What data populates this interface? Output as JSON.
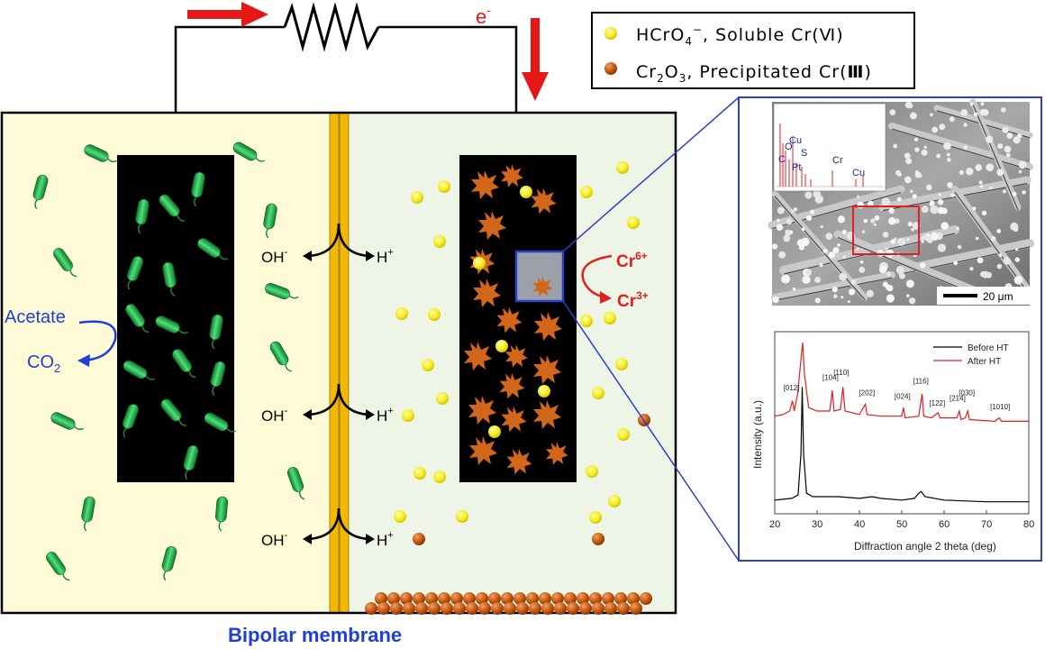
{
  "circuit": {
    "electron_label": "e",
    "electron_sup": "-"
  },
  "legend": {
    "item1_formula": "HCrO",
    "item1_sub": "4",
    "item1_sup": "−",
    "item1_text": ", Soluble Cr(Ⅵ)",
    "item2_formula": "Cr",
    "item2_sub1": "2",
    "item2_mid": "O",
    "item2_sub2": "3",
    "item2_text": ", Precipitated Cr(",
    "item2_bold": "Ⅲ",
    "item2_close": ")",
    "color_soluble": "#f5ec1a",
    "color_precipitated": "#c4560f"
  },
  "anode": {
    "acetate": "Acetate",
    "co2": "CO",
    "co2_sub": "2",
    "bacteria_color": "#2fbf5a",
    "chamber_color": "#fefbd6"
  },
  "membrane": {
    "label": "Bipolar membrane",
    "color": "#f4b800",
    "ions": [
      {
        "oh": "OH",
        "oh_sup": "-",
        "h": "H",
        "h_sup": "+"
      },
      {
        "oh": "OH",
        "oh_sup": "-",
        "h": "H",
        "h_sup": "+"
      },
      {
        "oh": "OH",
        "oh_sup": "-",
        "h": "H",
        "h_sup": "+"
      }
    ]
  },
  "cathode": {
    "cr6": "Cr",
    "cr6_sup": "6+",
    "cr3": "Cr",
    "cr3_sup": "3+",
    "chamber_color": "#eef4e6"
  },
  "sem": {
    "eds_labels": [
      "O",
      "Cu",
      "C",
      "S",
      "Pt",
      "Cr",
      "Cu"
    ],
    "scale_bar": "20 μm"
  },
  "chart_data": {
    "type": "line",
    "xlabel": "Diffraction angle 2 theta (deg)",
    "ylabel": "Intensity (a.u.)",
    "xlim": [
      20,
      80
    ],
    "x_ticks": [
      "20",
      "30",
      "40",
      "50",
      "60",
      "70",
      "80"
    ],
    "series": [
      {
        "name": "Before HT",
        "color": "#000000",
        "points": [
          [
            20,
            0.08
          ],
          [
            22,
            0.085
          ],
          [
            24,
            0.09
          ],
          [
            25.5,
            0.11
          ],
          [
            26.2,
            0.35
          ],
          [
            26.5,
            0.74
          ],
          [
            26.8,
            0.35
          ],
          [
            27.5,
            0.12
          ],
          [
            29,
            0.1
          ],
          [
            35,
            0.1
          ],
          [
            40,
            0.09
          ],
          [
            43,
            0.1
          ],
          [
            45,
            0.09
          ],
          [
            50,
            0.08
          ],
          [
            53,
            0.09
          ],
          [
            54,
            0.12
          ],
          [
            54.6,
            0.13
          ],
          [
            55.5,
            0.1
          ],
          [
            60,
            0.08
          ],
          [
            70,
            0.07
          ],
          [
            80,
            0.07
          ]
        ]
      },
      {
        "name": "After HT",
        "color": "#e02020",
        "points": [
          [
            20,
            0.57
          ],
          [
            22,
            0.58
          ],
          [
            23.5,
            0.6
          ],
          [
            24.2,
            0.66
          ],
          [
            24.6,
            0.6
          ],
          [
            25.4,
            0.7
          ],
          [
            26.2,
            0.9
          ],
          [
            26.6,
            1.0
          ],
          [
            27,
            0.82
          ],
          [
            28,
            0.62
          ],
          [
            30,
            0.6
          ],
          [
            33,
            0.6
          ],
          [
            33.6,
            0.72
          ],
          [
            34,
            0.6
          ],
          [
            35.5,
            0.61
          ],
          [
            36.1,
            0.74
          ],
          [
            36.6,
            0.6
          ],
          [
            40,
            0.58
          ],
          [
            41.4,
            0.64
          ],
          [
            41.8,
            0.58
          ],
          [
            45,
            0.57
          ],
          [
            50,
            0.57
          ],
          [
            50.4,
            0.62
          ],
          [
            50.8,
            0.56
          ],
          [
            54,
            0.57
          ],
          [
            54.8,
            0.7
          ],
          [
            55.2,
            0.57
          ],
          [
            57,
            0.56
          ],
          [
            58.6,
            0.59
          ],
          [
            59,
            0.56
          ],
          [
            63,
            0.56
          ],
          [
            63.6,
            0.6
          ],
          [
            64,
            0.55
          ],
          [
            65,
            0.56
          ],
          [
            65.6,
            0.6
          ],
          [
            66,
            0.55
          ],
          [
            72,
            0.54
          ],
          [
            73,
            0.56
          ],
          [
            73.6,
            0.54
          ],
          [
            80,
            0.54
          ]
        ]
      }
    ],
    "annotations": [
      {
        "label": "[012]",
        "x": 24.2,
        "y": 0.7
      },
      {
        "label": "[104]",
        "x": 33.4,
        "y": 0.76
      },
      {
        "label": "[110]",
        "x": 36.0,
        "y": 0.79
      },
      {
        "label": "[202]",
        "x": 42.0,
        "y": 0.67
      },
      {
        "label": "[024]",
        "x": 50.4,
        "y": 0.65
      },
      {
        "label": "[116]",
        "x": 54.8,
        "y": 0.74
      },
      {
        "label": "[122]",
        "x": 58.6,
        "y": 0.61
      },
      {
        "label": "[214]",
        "x": 63.4,
        "y": 0.64
      },
      {
        "label": "[030]",
        "x": 65.6,
        "y": 0.67
      },
      {
        "label": "[1010]",
        "x": 73.0,
        "y": 0.59
      }
    ],
    "legend": [
      {
        "name": "Before HT",
        "color": "#000000"
      },
      {
        "name": "After HT",
        "color": "#e02020"
      }
    ]
  }
}
